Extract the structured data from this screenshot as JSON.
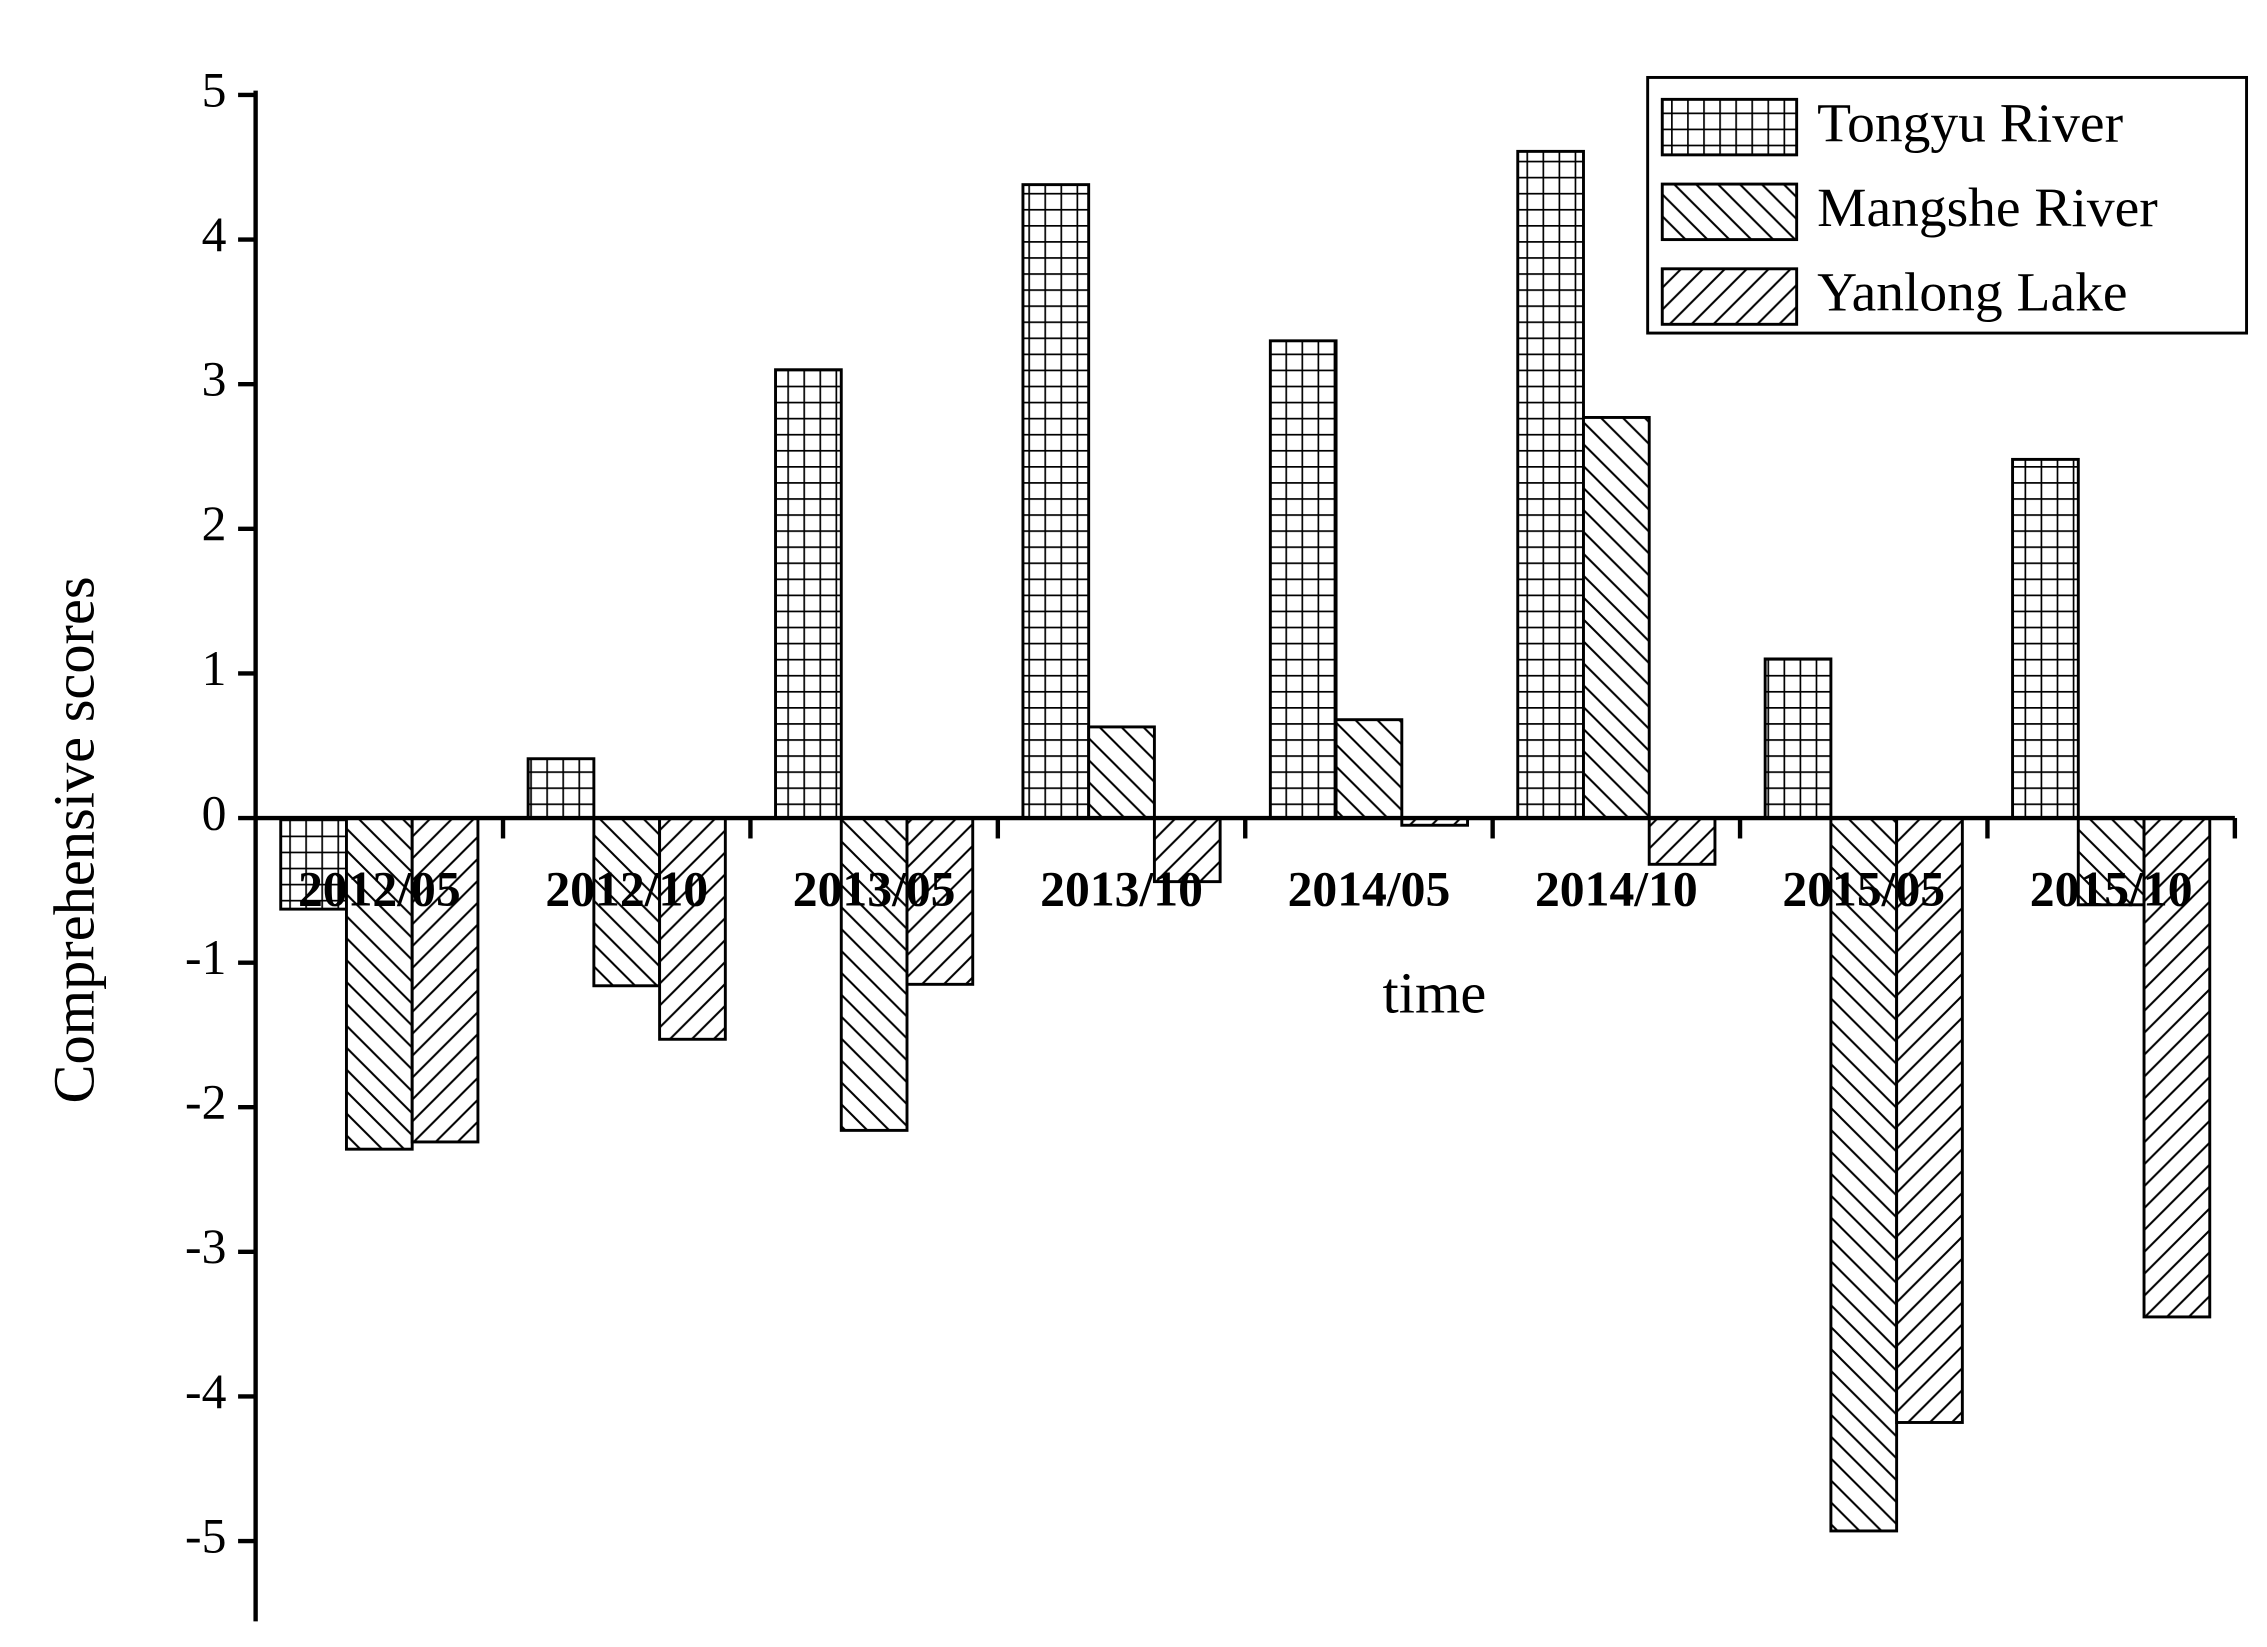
{
  "chart_data": {
    "type": "bar",
    "x_label": "time",
    "y_label": "Comprehensive scores",
    "categories": [
      "2012/05",
      "2012/10",
      "2013/05",
      "2013/10",
      "2014/05",
      "2014/10",
      "2015/05",
      "2015/10"
    ],
    "series": [
      {
        "name": "Tongyu River",
        "color": "#000000",
        "pattern": "grid",
        "values": [
          -0.63,
          0.41,
          3.1,
          4.38,
          3.3,
          4.61,
          1.1,
          2.48
        ]
      },
      {
        "name": "Mangshe River",
        "color": "#000000",
        "pattern": "backslash",
        "values": [
          -2.29,
          -1.16,
          -2.16,
          0.63,
          0.68,
          2.77,
          -4.93,
          -0.6
        ]
      },
      {
        "name": "Yanlong Lake",
        "color": "#000000",
        "pattern": "slash",
        "values": [
          -2.24,
          -1.53,
          -1.15,
          -0.44,
          -0.05,
          -0.32,
          -4.18,
          -3.45
        ]
      }
    ],
    "ylim": [
      -5.5,
      5
    ],
    "yticks": [
      -5,
      -4,
      -3,
      -2,
      -1,
      0,
      1,
      2,
      3,
      4,
      5
    ],
    "legend": "top-right"
  }
}
